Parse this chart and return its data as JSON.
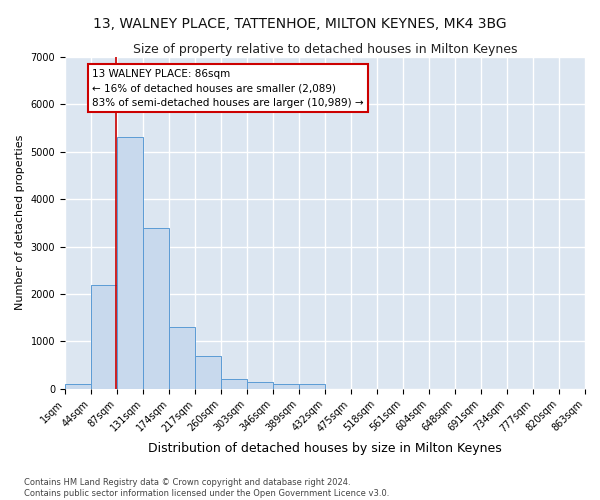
{
  "title_line1": "13, WALNEY PLACE, TATTENHOE, MILTON KEYNES, MK4 3BG",
  "title_line2": "Size of property relative to detached houses in Milton Keynes",
  "xlabel": "Distribution of detached houses by size in Milton Keynes",
  "ylabel": "Number of detached properties",
  "bar_color": "#c8d9ed",
  "bar_edge_color": "#5b9bd5",
  "background_color": "#dce6f1",
  "grid_color": "#ffffff",
  "fig_background": "#ffffff",
  "annotation_box_color": "#ffffff",
  "annotation_border_color": "#cc0000",
  "vline_color": "#cc0000",
  "footer_text": "Contains HM Land Registry data © Crown copyright and database right 2024.\nContains public sector information licensed under the Open Government Licence v3.0.",
  "annotation_line1": "13 WALNEY PLACE: 86sqm",
  "annotation_line2": "← 16% of detached houses are smaller (2,089)",
  "annotation_line3": "83% of semi-detached houses are larger (10,989) →",
  "bin_edges": [
    1,
    44,
    87,
    131,
    174,
    217,
    260,
    303,
    346,
    389,
    432,
    475,
    518,
    561,
    604,
    648,
    691,
    734,
    777,
    820,
    863
  ],
  "bin_counts": [
    100,
    2200,
    5300,
    3400,
    1300,
    700,
    200,
    150,
    100,
    100,
    5,
    5,
    5,
    5,
    5,
    5,
    5,
    5,
    5,
    5
  ],
  "property_size": 86,
  "ylim": [
    0,
    7000
  ],
  "yticks": [
    0,
    1000,
    2000,
    3000,
    4000,
    5000,
    6000,
    7000
  ],
  "title1_fontsize": 10,
  "title2_fontsize": 9,
  "xlabel_fontsize": 9,
  "ylabel_fontsize": 8,
  "tick_fontsize": 7,
  "annotation_fontsize": 7.5,
  "footer_fontsize": 6
}
